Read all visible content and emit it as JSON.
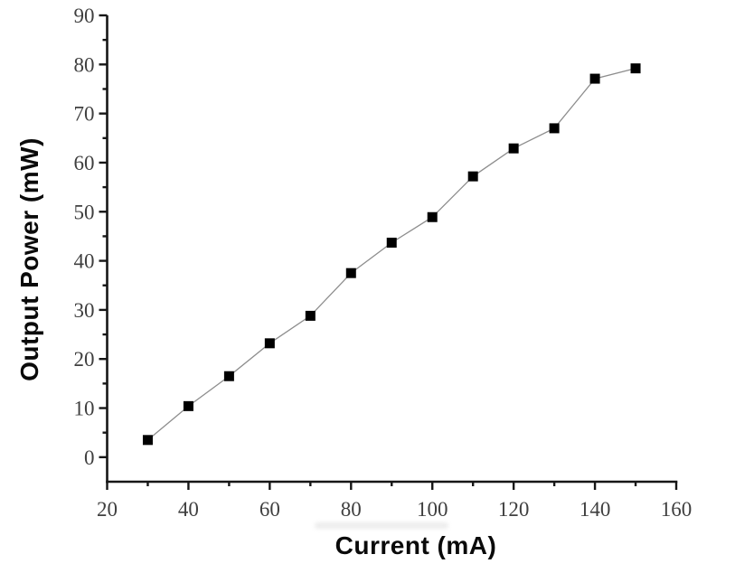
{
  "figure": {
    "background": "#ffffff"
  },
  "chart_data": {
    "type": "scatter",
    "title": "",
    "xlabel": "Current (mA)",
    "ylabel": "Output Power (mW)",
    "x": [
      30,
      40,
      50,
      60,
      70,
      80,
      90,
      100,
      110,
      120,
      130,
      140,
      150
    ],
    "y": [
      3.5,
      10.4,
      16.5,
      23.2,
      28.8,
      37.5,
      43.7,
      48.9,
      57.2,
      62.9,
      67.0,
      77.1,
      79.2
    ],
    "xlim": [
      20,
      160
    ],
    "ylim": [
      -5,
      90
    ],
    "x_major_ticks": [
      20,
      40,
      60,
      80,
      100,
      120,
      140,
      160
    ],
    "x_minor_ticks": [
      30,
      50,
      70,
      90,
      110,
      130,
      150
    ],
    "y_major_ticks": [
      0,
      10,
      20,
      30,
      40,
      50,
      60,
      70,
      80,
      90
    ],
    "y_minor_ticks": [
      5,
      15,
      25,
      35,
      45,
      55,
      65,
      75,
      85
    ],
    "grid": false,
    "legend": false,
    "marker": "filled-square",
    "marker_color": "#000000",
    "line_color": "#8d8d8d",
    "axis_color": "#161616",
    "tick_label_color": "#3f3f3f"
  }
}
